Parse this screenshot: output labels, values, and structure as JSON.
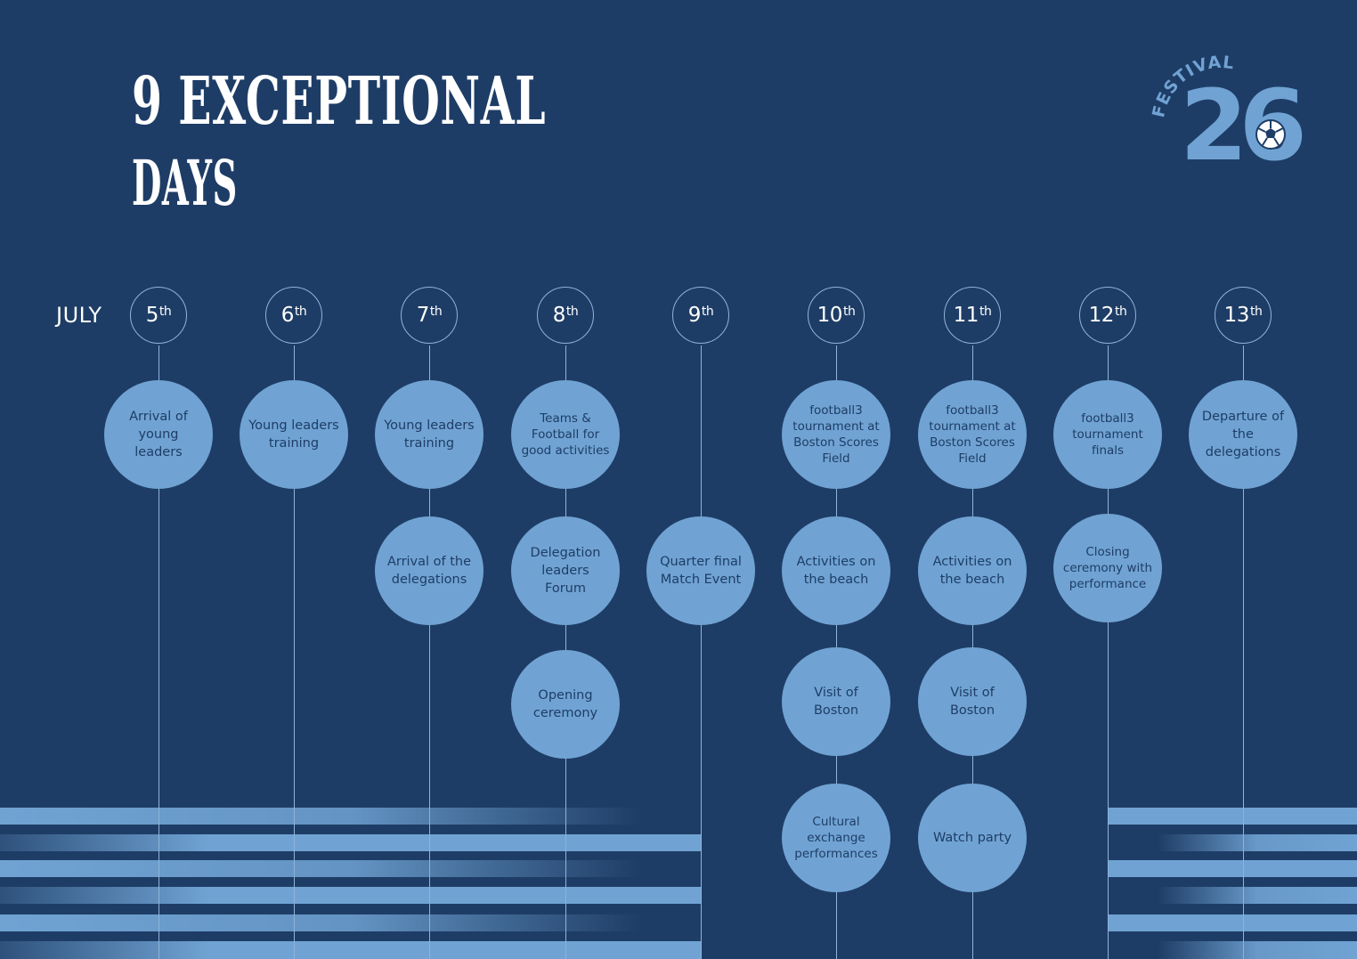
{
  "title": {
    "line1": "9 EXCEPTIONAL",
    "line2": "DAYS"
  },
  "logo": {
    "arc_text": "FESTIVAL",
    "number": "26",
    "ball_icon": "soccer-ball-icon"
  },
  "month": "JULY",
  "colors": {
    "background": "#1e3d66",
    "accent": "#70a3d3",
    "line": "#8fb3d9",
    "text_light": "#ffffff",
    "text_dark": "#1e3d66"
  },
  "days": [
    {
      "num": "5",
      "suffix": "th",
      "events": [
        "Arrival of young leaders"
      ]
    },
    {
      "num": "6",
      "suffix": "th",
      "events": [
        "Young leaders training"
      ]
    },
    {
      "num": "7",
      "suffix": "th",
      "events": [
        "Young leaders training",
        "Arrival of the delegations"
      ]
    },
    {
      "num": "8",
      "suffix": "th",
      "events": [
        "Teams & Football for good activities",
        "Delegation leaders Forum",
        "Opening ceremony"
      ]
    },
    {
      "num": "9",
      "suffix": "th",
      "events": [
        "Quarter final Match Event"
      ]
    },
    {
      "num": "10",
      "suffix": "th",
      "events": [
        "football3 tournament at Boston Scores Field",
        "Activities on the beach",
        "Visit of Boston",
        "Cultural exchange performances"
      ]
    },
    {
      "num": "11",
      "suffix": "th",
      "events": [
        "football3 tournament at Boston Scores Field",
        "Activities on the beach",
        "Visit of Boston",
        "Watch party"
      ]
    },
    {
      "num": "12",
      "suffix": "th",
      "events": [
        "football3 tournament finals",
        "Closing ceremony with performance"
      ]
    },
    {
      "num": "13",
      "suffix": "th",
      "events": [
        "Departure of the delegations"
      ]
    }
  ]
}
